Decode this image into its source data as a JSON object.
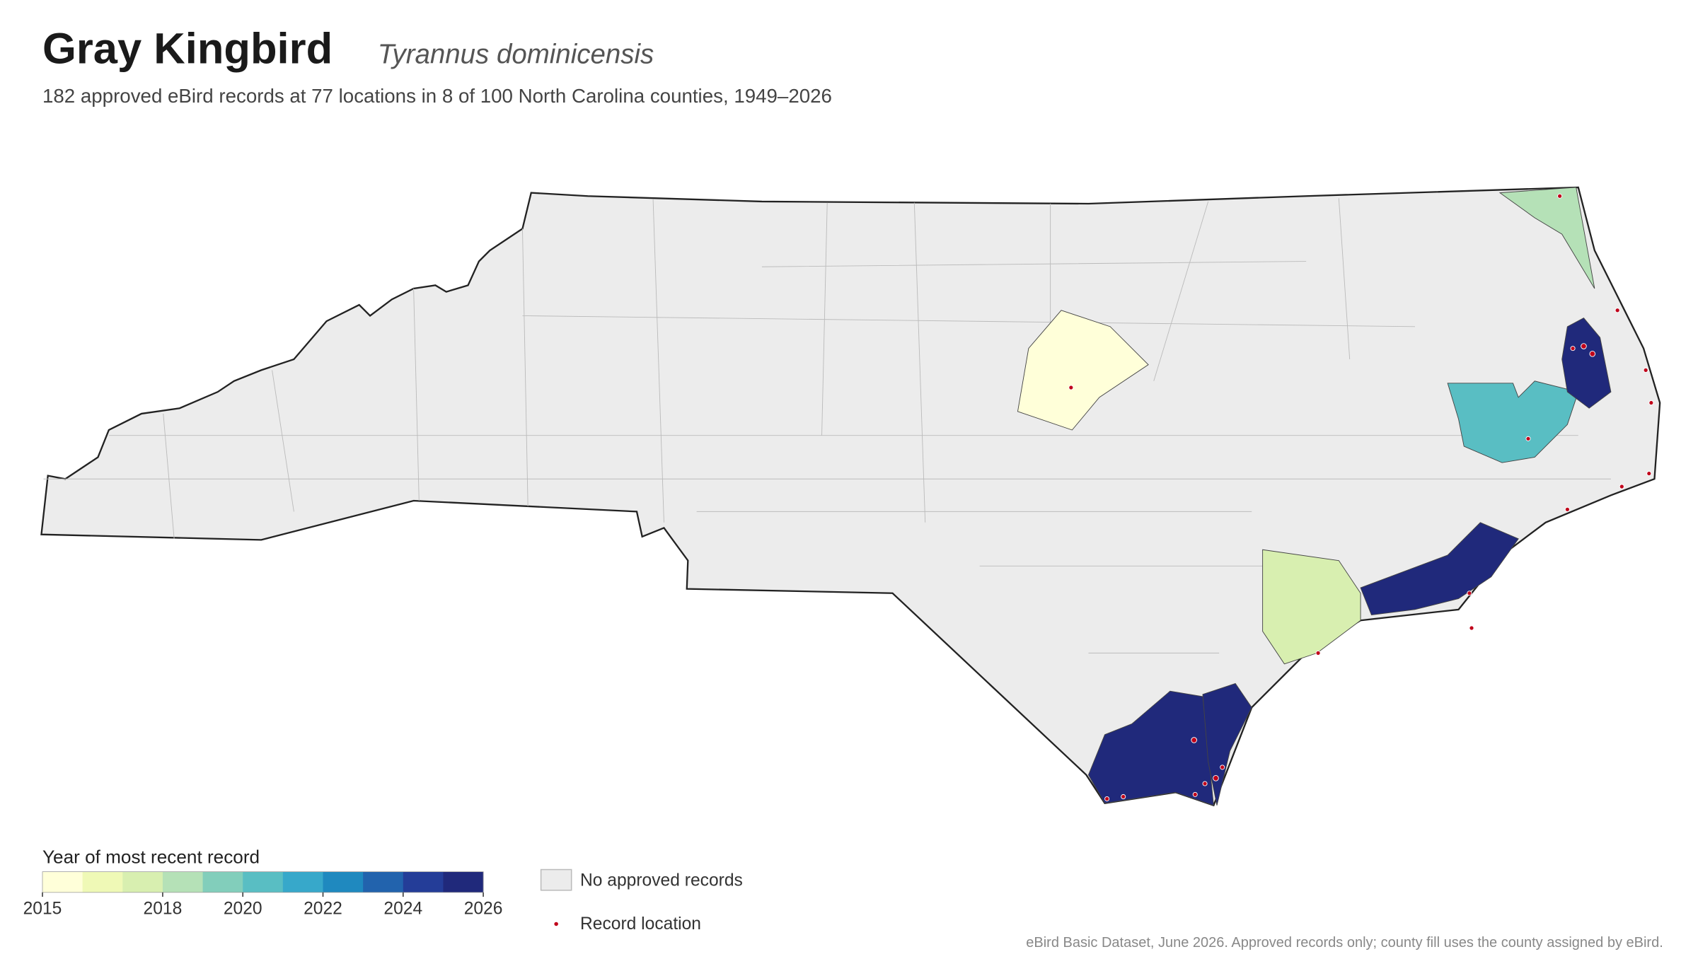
{
  "header": {
    "title": "Gray Kingbird",
    "subtitle": "Tyrannus dominicensis",
    "summary": "182 approved eBird records at 77 locations in 8 of 100 North Carolina counties, 1949–2026"
  },
  "legend": {
    "title": "Year of most recent record",
    "range": [
      2015,
      2026
    ],
    "ticks": [
      2015,
      2018,
      2020,
      2022,
      2024,
      2026
    ],
    "colors": [
      "#ffffd9",
      "#eff9b6",
      "#d8efb0",
      "#b5e1b7",
      "#82cebb",
      "#59bec3",
      "#37a8ca",
      "#1f89bf",
      "#2263ad",
      "#243d98",
      "#20297b"
    ],
    "no_records": "No approved records",
    "record_location": "Record location"
  },
  "counties": [
    {
      "year": 2015
    },
    {
      "year": 2018
    },
    {
      "year": 2020
    },
    {
      "year": 2025
    },
    {
      "year": 2025
    },
    {
      "year": 2017
    },
    {
      "year": 2026
    },
    {
      "year": 2025
    }
  ],
  "footer": "eBird Basic Dataset, June 2026. Approved records only; county fill uses the county assigned by eBird."
}
